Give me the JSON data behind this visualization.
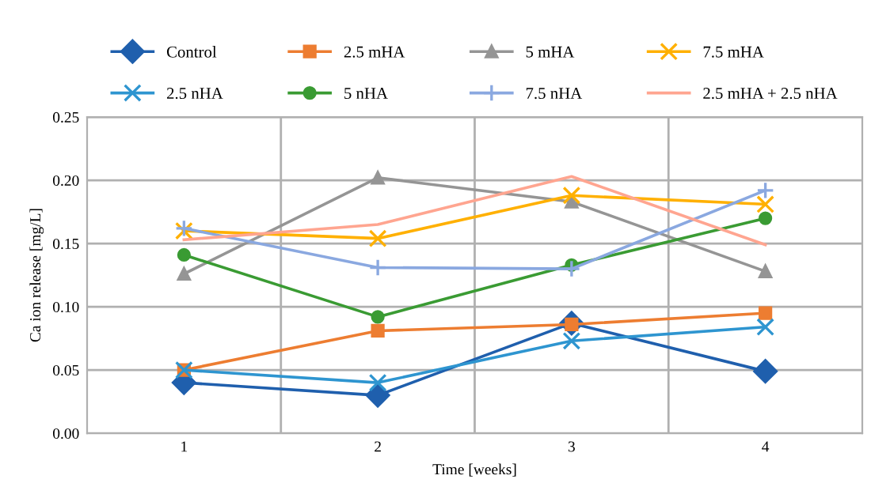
{
  "chart_data": {
    "type": "line",
    "xlabel": "Time [weeks]",
    "ylabel": "Ca ion release [mg/L]",
    "categories": [
      "1",
      "2",
      "3",
      "4"
    ],
    "ylim": [
      0,
      0.25
    ],
    "yticks": [
      {
        "value": 0,
        "label": "0.00"
      },
      {
        "value": 0.05,
        "label": "0.05"
      },
      {
        "value": 0.1,
        "label": "0.10"
      },
      {
        "value": 0.15,
        "label": "0.15"
      },
      {
        "value": 0.2,
        "label": "0.20"
      },
      {
        "value": 0.25,
        "label": "0.25"
      }
    ],
    "grid": true,
    "legend": "top",
    "series": [
      {
        "name": "Control",
        "color": "#1f5fad",
        "marker": "diamond",
        "values": [
          0.04,
          0.03,
          0.087,
          0.049
        ]
      },
      {
        "name": "2.5 mHA",
        "color": "#ed7d31",
        "marker": "square",
        "values": [
          0.05,
          0.081,
          0.086,
          0.095
        ]
      },
      {
        "name": "5 mHA",
        "color": "#959595",
        "marker": "triangle",
        "values": [
          0.126,
          0.202,
          0.183,
          0.128
        ]
      },
      {
        "name": "7.5 mHA",
        "color": "#ffb000",
        "marker": "cross",
        "values": [
          0.16,
          0.154,
          0.188,
          0.181
        ]
      },
      {
        "name": "2.5 nHA",
        "color": "#2e95d0",
        "marker": "cross",
        "values": [
          0.05,
          0.04,
          0.073,
          0.084
        ]
      },
      {
        "name": "5 nHA",
        "color": "#3a9b33",
        "marker": "circle",
        "values": [
          0.141,
          0.092,
          0.133,
          0.17
        ]
      },
      {
        "name": "7.5 nHA",
        "color": "#8aa8e0",
        "marker": "plus",
        "values": [
          0.162,
          0.131,
          0.13,
          0.192
        ]
      },
      {
        "name": "2.5 mHA + 2.5 nHA",
        "color": "#ffa590",
        "marker": "none",
        "values": [
          0.153,
          0.165,
          0.203,
          0.149
        ]
      }
    ]
  }
}
